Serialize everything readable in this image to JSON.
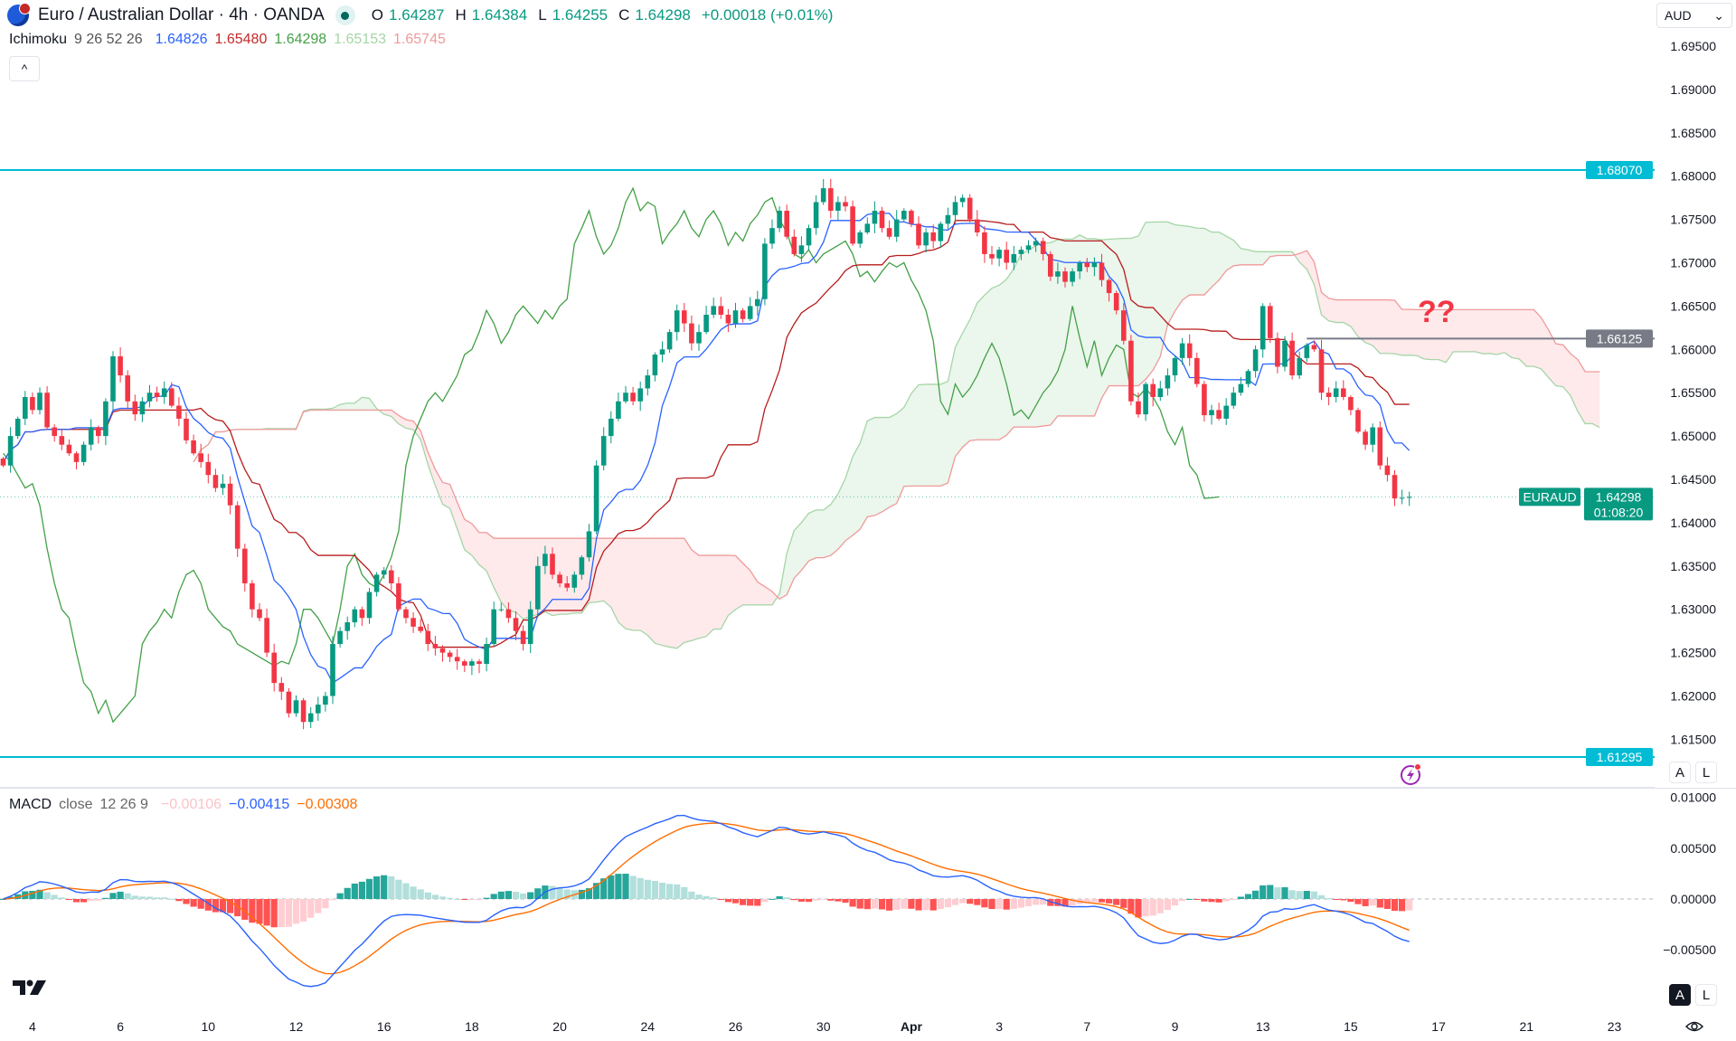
{
  "header": {
    "symbol_title": "Euro / Australian Dollar · 4h · OANDA",
    "ohlc": {
      "o_label": "O",
      "o": "1.64287",
      "h_label": "H",
      "h": "1.64384",
      "l_label": "L",
      "l": "1.64255",
      "c_label": "C",
      "c": "1.64298",
      "change": "+0.00018 (+0.01%)"
    },
    "market_status_icon": "market-open-dot"
  },
  "ichimoku": {
    "name": "Ichimoku",
    "params": "9 26 52 26",
    "values": [
      {
        "value": "1.64826",
        "color": "#2962ff"
      },
      {
        "value": "1.65480",
        "color": "#c62828"
      },
      {
        "value": "1.64298",
        "color": "#43a047"
      },
      {
        "value": "1.65153",
        "color": "#a5d6a7"
      },
      {
        "value": "1.65745",
        "color": "#ef9a9a"
      }
    ]
  },
  "collapse_icon": "^",
  "currency_select": {
    "value": "AUD"
  },
  "price_axis": {
    "ticks": [
      "1.69500",
      "1.69000",
      "1.68500",
      "1.68000",
      "1.67500",
      "1.67000",
      "1.66500",
      "1.66000",
      "1.65500",
      "1.65000",
      "1.64500",
      "1.64000",
      "1.63500",
      "1.63000",
      "1.62500",
      "1.62000",
      "1.61500"
    ],
    "labels": {
      "resistance": {
        "value": "1.68070",
        "color": "#00bcd4"
      },
      "support": {
        "value": "1.61295",
        "color": "#00bcd4"
      },
      "level": {
        "value": "1.66125",
        "color": "#787b86"
      },
      "last_symbol": "EURAUD",
      "last_price": "1.64298",
      "countdown": "01:08:20",
      "last_color": "#089981"
    },
    "auto_label": "A",
    "log_label": "L"
  },
  "annotation": {
    "text": "??",
    "color": "#f23645"
  },
  "macd": {
    "name": "MACD",
    "source": "close",
    "params": "12 26 9",
    "histogram": "−0.00106",
    "macd": "−0.00415",
    "signal": "−0.00308",
    "ticks": [
      "0.01000",
      "0.00500",
      "0.00000",
      "−0.00500"
    ],
    "colors": {
      "macd": "#2962ff",
      "signal": "#ff6d00",
      "hist_up_strong": "#26a69a",
      "hist_up_weak": "#b2dfdb",
      "hist_down_strong": "#ff5252",
      "hist_down_weak": "#ffcdd2"
    }
  },
  "time_axis": {
    "labels": [
      "4",
      "6",
      "10",
      "12",
      "16",
      "18",
      "20",
      "24",
      "26",
      "30",
      "Apr",
      "3",
      "7",
      "9",
      "13",
      "15",
      "17",
      "21",
      "23"
    ]
  },
  "bottom_axis": {
    "auto_label": "A",
    "log_label": "L"
  },
  "colors": {
    "up": "#089981",
    "down": "#f23645",
    "tenkan": "#2962ff",
    "kijun": "#b71c1c",
    "chikou": "#43a047",
    "span_a": "#a5d6a7",
    "span_b": "#ef9a9a"
  },
  "chart_data": {
    "type": "candlestick",
    "symbol": "EURAUD",
    "interval": "4h",
    "ylim": [
      1.6115,
      1.6975
    ],
    "horizontal_lines": [
      1.6807,
      1.66125,
      1.61295
    ],
    "closes": [
      1.6466,
      1.65,
      1.652,
      1.6545,
      1.653,
      1.655,
      1.651,
      1.65,
      1.649,
      1.648,
      1.647,
      1.649,
      1.651,
      1.65,
      1.654,
      1.6592,
      1.657,
      1.654,
      1.6525,
      1.654,
      1.655,
      1.6545,
      1.6555,
      1.6535,
      1.652,
      1.6495,
      1.648,
      1.647,
      1.6455,
      1.644,
      1.6445,
      1.642,
      1.637,
      1.633,
      1.63,
      1.629,
      1.625,
      1.6215,
      1.6205,
      1.618,
      1.6195,
      1.617,
      1.618,
      1.619,
      1.62,
      1.626,
      1.6275,
      1.6285,
      1.63,
      1.629,
      1.632,
      1.634,
      1.6345,
      1.633,
      1.63,
      1.629,
      1.628,
      1.6275,
      1.626,
      1.6255,
      1.625,
      1.6245,
      1.624,
      1.6235,
      1.624,
      1.6237,
      1.626,
      1.63,
      1.63,
      1.629,
      1.6275,
      1.626,
      1.63,
      1.635,
      1.6364,
      1.634,
      1.633,
      1.6325,
      1.634,
      1.636,
      1.639,
      1.6466,
      1.65,
      1.652,
      1.654,
      1.655,
      1.654,
      1.6555,
      1.657,
      1.6594,
      1.66,
      1.662,
      1.6645,
      1.663,
      1.6607,
      1.662,
      1.664,
      1.665,
      1.664,
      1.663,
      1.6645,
      1.6635,
      1.665,
      1.6658,
      1.6722,
      1.674,
      1.676,
      1.673,
      1.671,
      1.672,
      1.674,
      1.677,
      1.6786,
      1.676,
      1.677,
      1.6765,
      1.6722,
      1.6735,
      1.6745,
      1.676,
      1.674,
      1.673,
      1.675,
      1.676,
      1.6745,
      1.672,
      1.6735,
      1.6725,
      1.6745,
      1.6755,
      1.677,
      1.6775,
      1.675,
      1.6735,
      1.671,
      1.6705,
      1.6715,
      1.67,
      1.671,
      1.6715,
      1.672,
      1.6725,
      1.671,
      1.6684,
      1.669,
      1.6678,
      1.669,
      1.67,
      1.6695,
      1.67,
      1.668,
      1.6665,
      1.6645,
      1.661,
      1.654,
      1.6525,
      1.656,
      1.6545,
      1.6555,
      1.657,
      1.659,
      1.6607,
      1.659,
      1.656,
      1.6524,
      1.653,
      1.652,
      1.6535,
      1.655,
      1.656,
      1.6575,
      1.66,
      1.665,
      1.6613,
      1.658,
      1.661,
      1.657,
      1.659,
      1.6605,
      1.66,
      1.655,
      1.6545,
      1.6555,
      1.6545,
      1.653,
      1.6505,
      1.649,
      1.651,
      1.6466,
      1.6455,
      1.6428,
      1.64287,
      1.64298
    ]
  }
}
